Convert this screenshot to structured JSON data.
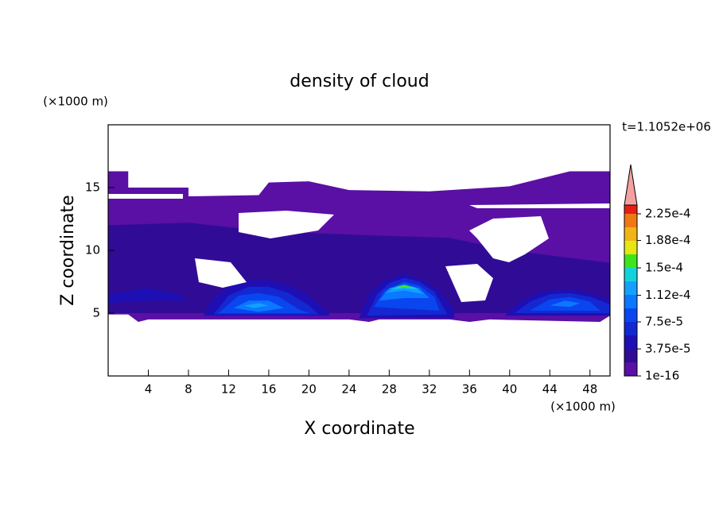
{
  "chart_data": {
    "type": "contour",
    "title": "density of cloud",
    "xlabel": "X coordinate",
    "ylabel": "Z coordinate",
    "x_unit": "(×1000 m)",
    "y_unit": "(×1000 m)",
    "annotation": "t=1.1052e+06",
    "xlim": [
      0,
      50
    ],
    "ylim": [
      0,
      20
    ],
    "xticks": [
      4,
      8,
      12,
      16,
      20,
      24,
      28,
      32,
      36,
      40,
      44,
      48
    ],
    "yticks": [
      5,
      10,
      15
    ],
    "levels": [
      1e-16,
      1.875e-05,
      3.75e-05,
      5.625e-05,
      7.5e-05,
      9.375e-05,
      0.0001125,
      0.00013125,
      0.00015,
      0.00016875,
      0.0001875,
      0.00020625,
      0.000225
    ],
    "colors": [
      "#5a0fa5",
      "#300c96",
      "#1e0fb4",
      "#1428d2",
      "#0a46f0",
      "#0a78ff",
      "#14a0ff",
      "#14d2dc",
      "#3ce61e",
      "#e6e614",
      "#f0b414",
      "#f07814",
      "#e61e14"
    ],
    "extend_color": "#f4a0a0",
    "colorbar_ticks": [
      {
        "value": 1e-16,
        "label": "1e-16"
      },
      {
        "value": 3.75e-05,
        "label": "3.75e-5"
      },
      {
        "value": 7.5e-05,
        "label": "7.5e-5"
      },
      {
        "value": 0.000112,
        "label": "1.12e-4"
      },
      {
        "value": 0.00015,
        "label": "1.5e-4"
      },
      {
        "value": 0.000188,
        "label": "1.88e-4"
      },
      {
        "value": 0.000225,
        "label": "2.25e-4"
      }
    ],
    "regions": [
      {
        "level": 1e-16,
        "x": [
          0,
          2,
          2,
          8,
          8,
          15,
          16,
          20,
          24,
          32,
          40,
          46,
          50,
          50,
          49,
          38,
          36,
          34,
          27,
          26,
          24,
          22,
          4,
          3,
          2,
          0
        ],
        "z": [
          16.3,
          16.3,
          15,
          15,
          14.3,
          14.4,
          15.4,
          15.5,
          14.8,
          14.7,
          15.1,
          16.3,
          16.3,
          4.8,
          4.3,
          4.5,
          4.3,
          4.5,
          4.5,
          4.3,
          4.5,
          4.5,
          4.5,
          4.3,
          4.9,
          4.9
        ]
      },
      {
        "level": 1.875e-05,
        "x": [
          0,
          8,
          16,
          26,
          34,
          40,
          50,
          50,
          0
        ],
        "z": [
          12,
          12.2,
          11.5,
          11.2,
          11,
          10,
          9,
          5,
          5
        ]
      },
      {
        "level": 3.75e-05,
        "x": [
          0,
          4,
          7,
          8,
          4,
          0
        ],
        "z": [
          6.5,
          7,
          6.5,
          6,
          6,
          5.8
        ]
      },
      {
        "level": 3.75e-05,
        "x": [
          9.5,
          10.5,
          12,
          14,
          16,
          18,
          20,
          22,
          22
        ],
        "z": [
          4.8,
          6.2,
          7.1,
          7.6,
          7.6,
          7.2,
          6.4,
          5,
          4.8
        ]
      },
      {
        "level": 5.625e-05,
        "x": [
          10.5,
          12,
          14,
          16,
          18,
          20,
          21
        ],
        "z": [
          4.9,
          6.4,
          7.1,
          7.1,
          6.6,
          5.6,
          4.9
        ]
      },
      {
        "level": 7.5e-05,
        "x": [
          11,
          13,
          15,
          17,
          19,
          20
        ],
        "z": [
          5,
          6.4,
          6.6,
          6.3,
          5.3,
          5
        ]
      },
      {
        "level": 9.375e-05,
        "x": [
          12.5,
          14,
          16,
          17.5,
          15
        ],
        "z": [
          5.4,
          6,
          6,
          5.4,
          5.1
        ]
      },
      {
        "level": 0.0001125,
        "x": [
          13.5,
          15,
          16,
          14.5
        ],
        "z": [
          5.6,
          5.8,
          5.6,
          5.4
        ]
      },
      {
        "level": 3.75e-05,
        "x": [
          25,
          26,
          27.5,
          29.5,
          31.5,
          33,
          34.5,
          34.5
        ],
        "z": [
          4.6,
          6.5,
          7.6,
          8.1,
          7.6,
          6.8,
          5.2,
          4.6
        ]
      },
      {
        "level": 5.625e-05,
        "x": [
          25.8,
          26.8,
          28,
          29.5,
          31,
          32.5,
          33.8
        ],
        "z": [
          4.8,
          6.5,
          7.4,
          7.8,
          7.5,
          6.7,
          4.9
        ]
      },
      {
        "level": 7.5e-05,
        "x": [
          26.5,
          27.5,
          29.5,
          31,
          32.5,
          33
        ],
        "z": [
          5.5,
          6.8,
          7.5,
          7.2,
          6.3,
          5.2
        ]
      },
      {
        "level": 9.375e-05,
        "x": [
          27,
          28,
          29.5,
          31,
          32,
          29.5
        ],
        "z": [
          6,
          7,
          7.3,
          7,
          6.2,
          6.2
        ]
      },
      {
        "level": 0.0001125,
        "x": [
          27.5,
          29,
          30.5,
          31.5,
          29.5
        ],
        "z": [
          6.6,
          7.2,
          7.1,
          6.5,
          6.8
        ]
      },
      {
        "level": 0.00013125,
        "x": [
          28,
          29.5,
          31,
          29.5
        ],
        "z": [
          6.9,
          7.25,
          6.9,
          7
        ]
      },
      {
        "level": 0.00015,
        "x": [
          28.8,
          29.5,
          30.2,
          29.5
        ],
        "z": [
          7.1,
          7.25,
          7.1,
          7.05
        ]
      },
      {
        "level": 3.75e-05,
        "x": [
          39.5,
          41,
          43,
          45,
          47,
          49,
          50,
          50
        ],
        "z": [
          4.8,
          5.9,
          6.7,
          6.9,
          6.8,
          6.3,
          6,
          4.8
        ]
      },
      {
        "level": 5.625e-05,
        "x": [
          40.5,
          42,
          44,
          46,
          48,
          50,
          50
        ],
        "z": [
          5,
          5.9,
          6.5,
          6.6,
          6.3,
          5.7,
          5
        ]
      },
      {
        "level": 7.5e-05,
        "x": [
          42,
          44,
          46,
          48,
          49
        ],
        "z": [
          5.2,
          6.1,
          6.3,
          5.9,
          5.2
        ]
      },
      {
        "level": 9.375e-05,
        "x": [
          44,
          45.5,
          47,
          46
        ],
        "z": [
          5.6,
          6,
          5.8,
          5.5
        ]
      }
    ]
  }
}
